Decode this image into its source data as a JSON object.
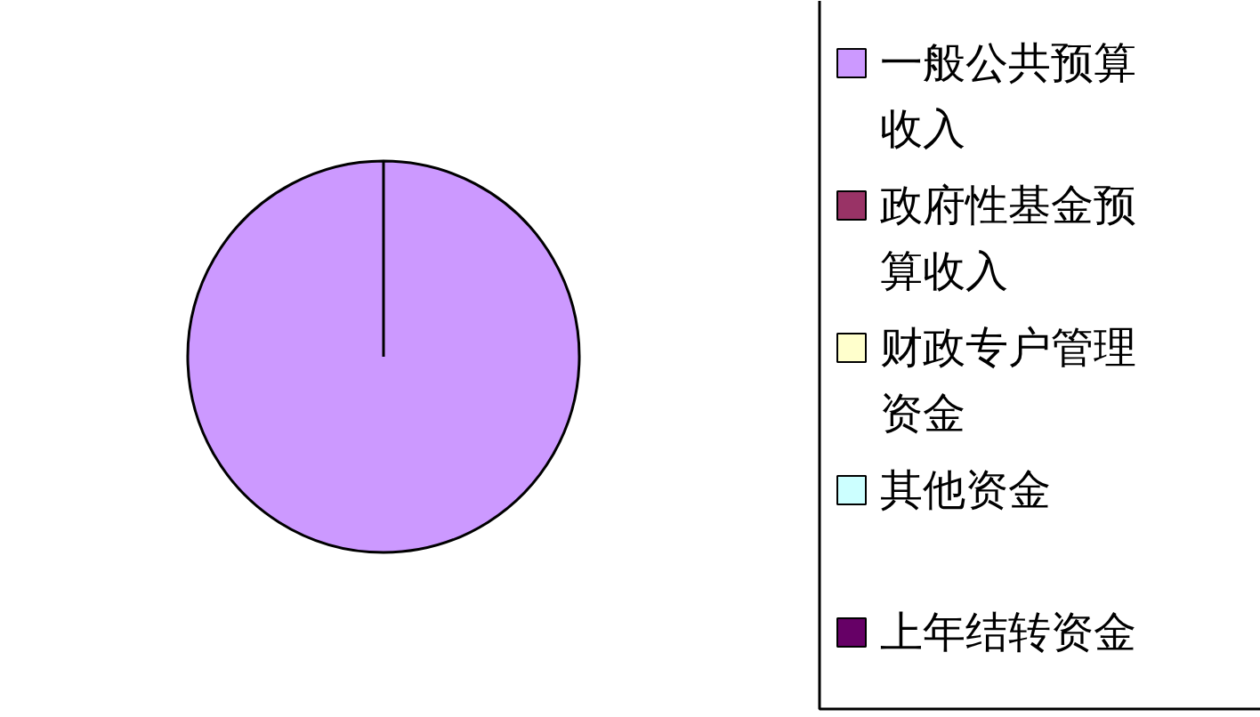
{
  "chart_data": {
    "type": "pie",
    "categories": [
      "一般公共预算收入",
      "政府性基金预算收入",
      "财政专户管理资金",
      "其他资金",
      "上年结转资金"
    ],
    "values": [
      100,
      0,
      0,
      0,
      0
    ],
    "colors": [
      "#cc99ff",
      "#993366",
      "#ffffcc",
      "#ccffff",
      "#660066"
    ],
    "legend": "right"
  }
}
